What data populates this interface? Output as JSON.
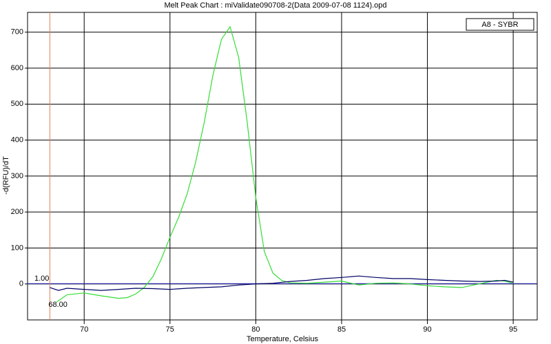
{
  "chart_data": {
    "type": "line",
    "title": "Melt Peak Chart : miValidate090708-2(Data 2009-07-08 1124).opd",
    "x_label": "Temperature, Celsius",
    "y_label": "-d(RFU)/dT",
    "legend_title": "A8 - SYBR",
    "xlim": [
      66.7,
      96.4
    ],
    "ylim": [
      -100,
      755
    ],
    "xticks": [
      70,
      75,
      80,
      85,
      90,
      95
    ],
    "yticks": [
      0,
      100,
      200,
      300,
      400,
      500,
      600,
      700
    ],
    "grid": true,
    "threshold": {
      "value": 1,
      "label": "1.00",
      "color": "#2f2fcf"
    },
    "x_marker": {
      "value": 68,
      "label": "68.00",
      "color": "#e0805a"
    },
    "series": [
      {
        "color": "#33dd33",
        "x": [
          68.4,
          69,
          70,
          71,
          72,
          72.5,
          73,
          73.5,
          74,
          74.5,
          75,
          75.5,
          76,
          76.5,
          77,
          77.5,
          78,
          78.5,
          79,
          79.5,
          80,
          80.5,
          81,
          81.5,
          82,
          83,
          84,
          85,
          86,
          87,
          88,
          89,
          90,
          91,
          92,
          93,
          94,
          94.5,
          95
        ],
        "values": [
          -50,
          -30,
          -25,
          -33,
          -40,
          -38,
          -28,
          -10,
          20,
          70,
          130,
          185,
          250,
          340,
          450,
          580,
          680,
          715,
          630,
          450,
          240,
          90,
          30,
          10,
          3,
          2,
          5,
          8,
          -3,
          2,
          3,
          0,
          -5,
          -8,
          -10,
          0,
          10,
          8,
          2
        ]
      },
      {
        "color": "#000066",
        "x": [
          68,
          68.5,
          69,
          70,
          71,
          72,
          73,
          74,
          75,
          76,
          77,
          78,
          79,
          80,
          81,
          82,
          83,
          84,
          85,
          86,
          87,
          88,
          89,
          90,
          91,
          92,
          93,
          94,
          94.5,
          95
        ],
        "values": [
          -10,
          -18,
          -12,
          -15,
          -18,
          -15,
          -12,
          -13,
          -15,
          -12,
          -10,
          -8,
          -3,
          0,
          2,
          7,
          10,
          15,
          18,
          22,
          18,
          15,
          15,
          12,
          10,
          8,
          7,
          8,
          10,
          5
        ]
      }
    ]
  }
}
